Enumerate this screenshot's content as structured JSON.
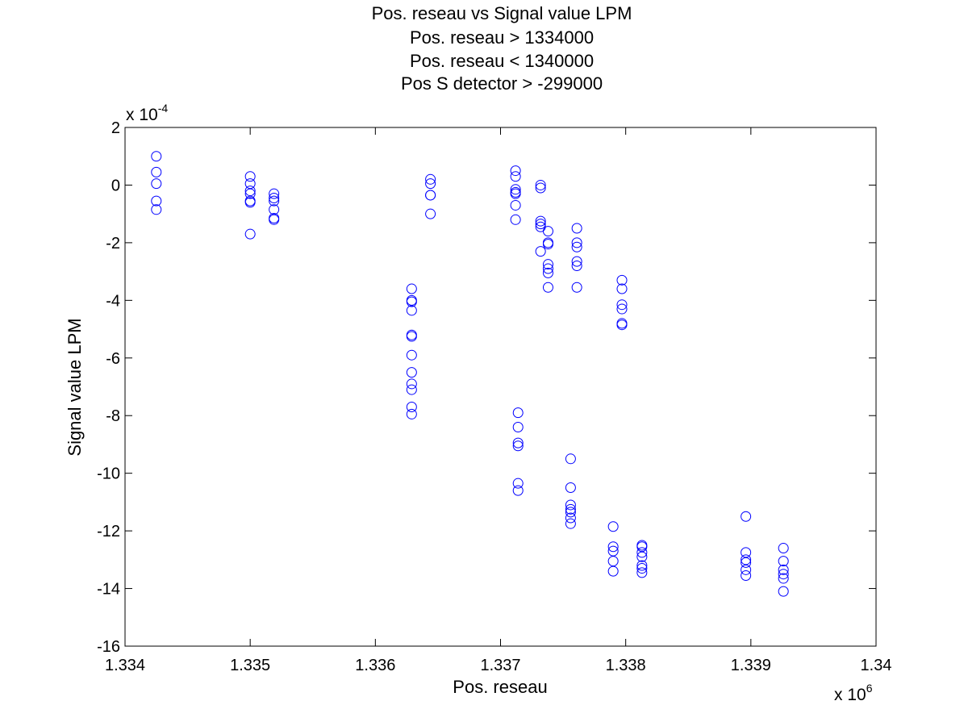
{
  "chart_data": {
    "type": "scatter",
    "title": [
      "Pos. reseau vs Signal value LPM",
      "Pos. reseau > 1334000",
      "Pos. reseau < 1340000",
      "Pos S detector > -299000"
    ],
    "xlabel": "Pos. reseau",
    "ylabel": "Signal value LPM",
    "xlim": [
      1334000,
      1340000
    ],
    "ylim": [
      -16,
      2
    ],
    "x_ticks": [
      1334000,
      1335000,
      1336000,
      1337000,
      1338000,
      1339000,
      1340000
    ],
    "x_tick_labels": [
      "1.334",
      "1.335",
      "1.336",
      "1.337",
      "1.338",
      "1.339",
      "1.34"
    ],
    "y_ticks": [
      -16,
      -14,
      -12,
      -10,
      -8,
      -6,
      -4,
      -2,
      0,
      2
    ],
    "y_tick_labels": [
      "-16",
      "-14",
      "-12",
      "-10",
      "-8",
      "-6",
      "-4",
      "-2",
      "0",
      "2"
    ],
    "x_multiplier": {
      "base": "x 10",
      "exponent": "6"
    },
    "y_multiplier": {
      "base": "x 10",
      "exponent": "-4"
    },
    "grid": false,
    "legend": "none",
    "marker": "open-circle",
    "marker_color": "#0000ff",
    "series": [
      {
        "x": [
          1334250,
          1334250,
          1334250,
          1334250,
          1334250,
          1335000,
          1335000,
          1335000,
          1335000,
          1335000,
          1335000,
          1335000,
          1335190,
          1335190,
          1335190,
          1335190,
          1335190,
          1335190,
          1336290,
          1336290,
          1336290,
          1336290,
          1336290,
          1336290,
          1336290,
          1336290,
          1336290,
          1336290,
          1336290,
          1336290,
          1336440,
          1336440,
          1336440,
          1336440,
          1336440,
          1337120,
          1337120,
          1337120,
          1337120,
          1337120,
          1337120,
          1337120,
          1337140,
          1337140,
          1337140,
          1337140,
          1337140,
          1337140,
          1337320,
          1337320,
          1337320,
          1337320,
          1337320,
          1337320,
          1337380,
          1337380,
          1337380,
          1337380,
          1337380,
          1337380,
          1337380,
          1337560,
          1337560,
          1337560,
          1337560,
          1337560,
          1337560,
          1337560,
          1337610,
          1337610,
          1337610,
          1337610,
          1337610,
          1337610,
          1337900,
          1337900,
          1337900,
          1337900,
          1337900,
          1337970,
          1337970,
          1337970,
          1337970,
          1337970,
          1337970,
          1338130,
          1338130,
          1338130,
          1338130,
          1338130,
          1338130,
          1338130,
          1338960,
          1338960,
          1338960,
          1338960,
          1338960,
          1338960,
          1339260,
          1339260,
          1339260,
          1339260,
          1339260,
          1339260
        ],
        "y": [
          1.0,
          0.45,
          0.05,
          -0.55,
          -0.85,
          0.3,
          0.05,
          -0.2,
          -0.3,
          -0.55,
          -0.6,
          -1.7,
          -0.3,
          -0.45,
          -0.55,
          -0.85,
          -1.15,
          -1.2,
          -3.6,
          -4.0,
          -4.05,
          -4.35,
          -5.2,
          -5.25,
          -5.9,
          -6.5,
          -6.9,
          -7.1,
          -7.7,
          -7.95,
          0.2,
          0.05,
          -0.35,
          -0.35,
          -1.0,
          0.5,
          0.3,
          -0.15,
          -0.25,
          -0.3,
          -0.7,
          -1.2,
          -7.9,
          -8.4,
          -8.95,
          -9.05,
          -10.35,
          -10.6,
          0.0,
          -0.1,
          -1.25,
          -1.35,
          -1.45,
          -2.3,
          -1.6,
          -2.0,
          -2.05,
          -2.75,
          -2.9,
          -3.05,
          -3.55,
          -9.5,
          -10.5,
          -11.1,
          -11.25,
          -11.35,
          -11.55,
          -11.75,
          -1.5,
          -2.0,
          -2.15,
          -2.65,
          -2.8,
          -3.55,
          -11.85,
          -12.55,
          -12.7,
          -13.05,
          -13.4,
          -3.3,
          -3.6,
          -4.15,
          -4.3,
          -4.8,
          -4.85,
          -12.5,
          -12.55,
          -12.75,
          -12.9,
          -13.2,
          -13.3,
          -13.45,
          -11.5,
          -12.75,
          -13.0,
          -13.1,
          -13.35,
          -13.55,
          -12.6,
          -13.05,
          -13.35,
          -13.5,
          -13.65,
          -14.1
        ]
      }
    ],
    "extra_points_note": ""
  }
}
